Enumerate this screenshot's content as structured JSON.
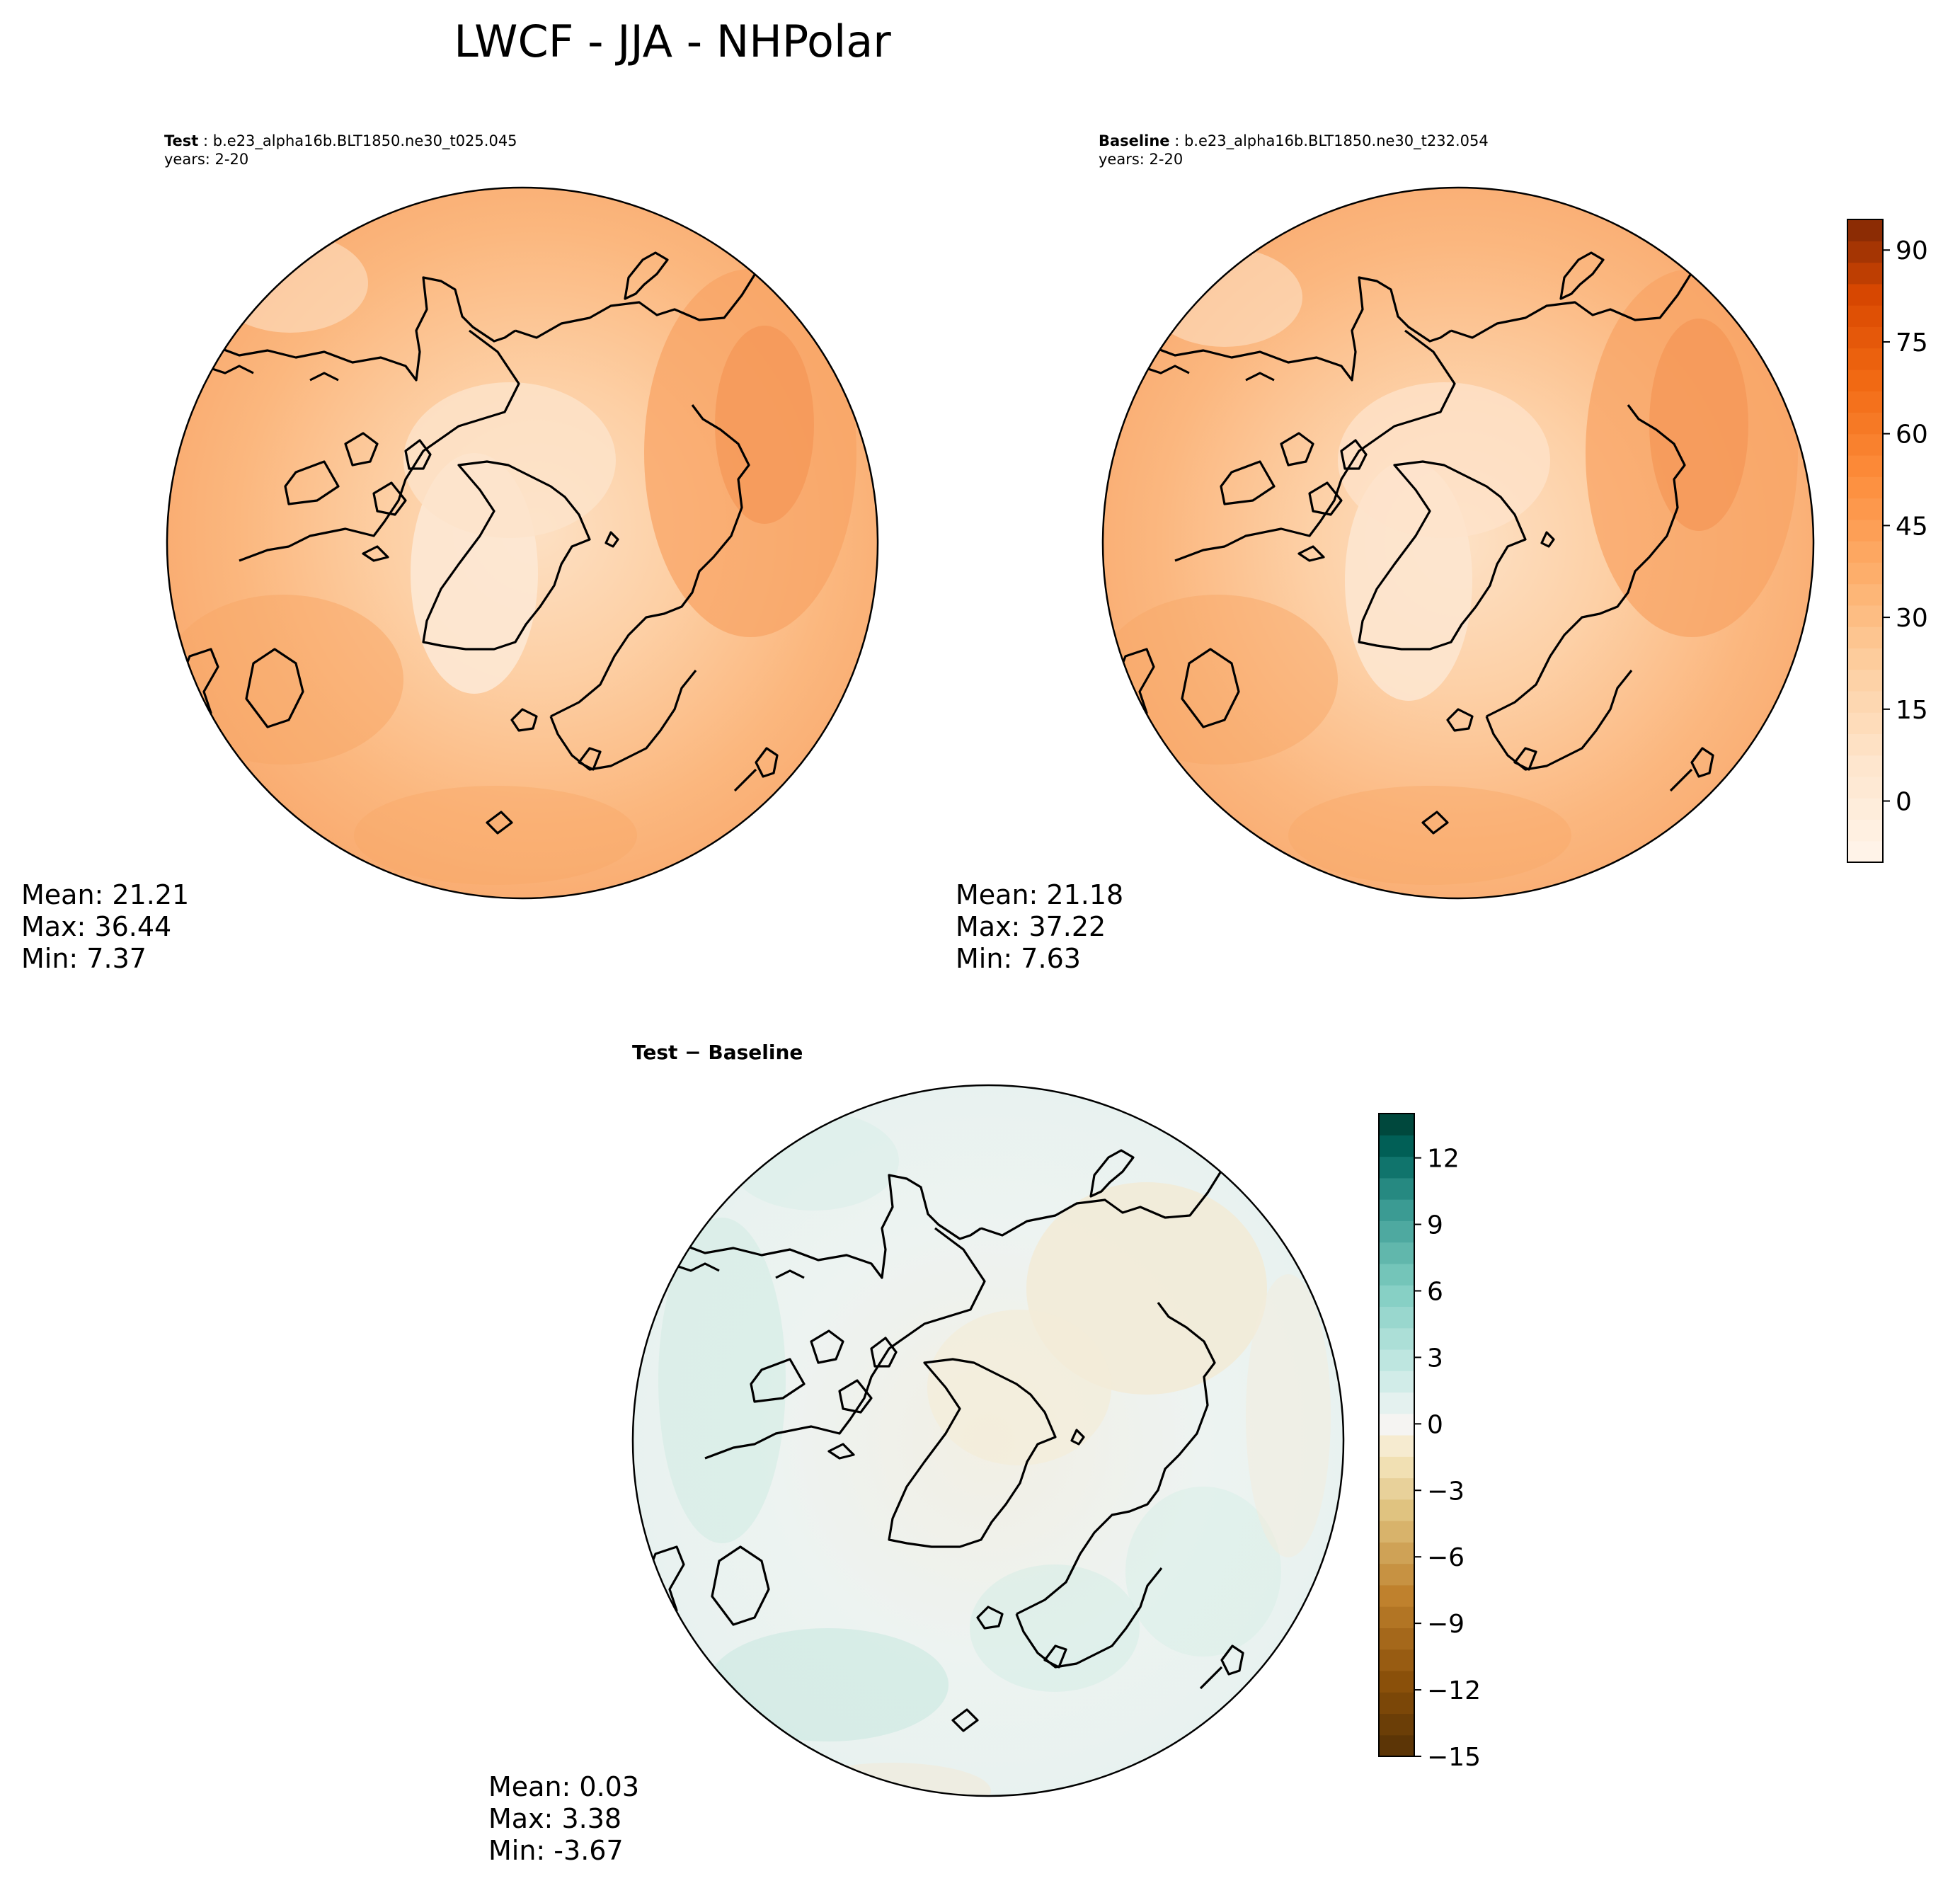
{
  "title": "LWCF - JJA - NHPolar",
  "panels": [
    {
      "id": "test",
      "label_bold": "Test",
      "label_sep": " : ",
      "case": "b.e23_alpha16b.BLT1850.ne30_t025.045",
      "years": "years: 2-20",
      "stats": [
        "Mean: 21.21",
        "Max: 36.44",
        "Min:  7.37"
      ]
    },
    {
      "id": "baseline",
      "label_bold": "Baseline",
      "label_sep": " : ",
      "case": "b.e23_alpha16b.BLT1850.ne30_t232.054",
      "years": "years: 2-20",
      "stats": [
        "Mean: 21.18",
        "Max: 37.22",
        "Min:  7.63"
      ]
    },
    {
      "id": "diff",
      "label": "Test − Baseline",
      "stats": [
        "Mean:  0.03",
        "Max:  3.38",
        "Min: -3.67"
      ]
    }
  ],
  "colorbars": {
    "main": {
      "colormap": "Oranges",
      "ticks": [
        "0",
        "15",
        "30",
        "45",
        "60",
        "75",
        "90"
      ],
      "range": [
        -10,
        95
      ],
      "low_color": "#fff5eb",
      "high_color": "#7f2704"
    },
    "diff": {
      "colormap": "BrBG",
      "ticks": [
        "−15",
        "−12",
        "−9",
        "−6",
        "−3",
        "0",
        "3",
        "6",
        "9",
        "12"
      ],
      "range": [
        -15,
        14
      ],
      "low_color": "#543005",
      "high_color": "#003c30"
    }
  }
}
